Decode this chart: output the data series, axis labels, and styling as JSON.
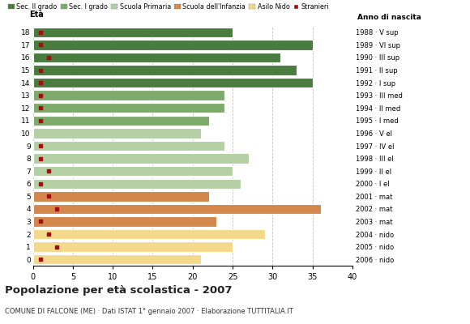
{
  "ages": [
    18,
    17,
    16,
    15,
    14,
    13,
    12,
    11,
    10,
    9,
    8,
    7,
    6,
    5,
    4,
    3,
    2,
    1,
    0
  ],
  "bar_values": [
    25,
    35,
    31,
    33,
    35,
    24,
    24,
    22,
    21,
    24,
    27,
    25,
    26,
    22,
    36,
    23,
    29,
    25,
    21
  ],
  "stranieri": [
    1,
    1,
    2,
    1,
    1,
    1,
    1,
    1,
    0,
    1,
    1,
    2,
    1,
    2,
    3,
    1,
    2,
    3,
    1
  ],
  "anno_nascita": [
    "1988 · V sup",
    "1989 · VI sup",
    "1990 · III sup",
    "1991 · II sup",
    "1992 · I sup",
    "1993 · III med",
    "1994 · II med",
    "1995 · I med",
    "1996 · V el",
    "1997 · IV el",
    "1998 · III el",
    "1999 · II el",
    "2000 · I el",
    "2001 · mat",
    "2002 · mat",
    "2003 · mat",
    "2004 · nido",
    "2005 · nido",
    "2006 · nido"
  ],
  "bar_colors": [
    "#4a7c3f",
    "#4a7c3f",
    "#4a7c3f",
    "#4a7c3f",
    "#4a7c3f",
    "#7daa6b",
    "#7daa6b",
    "#7daa6b",
    "#b5cfa5",
    "#b5cfa5",
    "#b5cfa5",
    "#b5cfa5",
    "#b5cfa5",
    "#d4874a",
    "#d4874a",
    "#d4874a",
    "#f5d98a",
    "#f5d98a",
    "#f5d98a"
  ],
  "stranieri_color": "#a01010",
  "title": "Popolazione per età scolastica - 2007",
  "subtitle": "COMUNE DI FALCONE (ME) · Dati ISTAT 1° gennaio 2007 · Elaborazione TUTTITALIA.IT",
  "xlim": [
    0,
    40
  ],
  "xticks": [
    0,
    5,
    10,
    15,
    20,
    25,
    30,
    35,
    40
  ],
  "legend_labels": [
    "Sec. II grado",
    "Sec. I grado",
    "Scuola Primaria",
    "Scuola dell'Infanzia",
    "Asilo Nido",
    "Stranieri"
  ],
  "legend_colors": [
    "#4a7c3f",
    "#7daa6b",
    "#b5cfa5",
    "#d4874a",
    "#f5d98a",
    "#a01010"
  ],
  "bg_color": "#ffffff"
}
